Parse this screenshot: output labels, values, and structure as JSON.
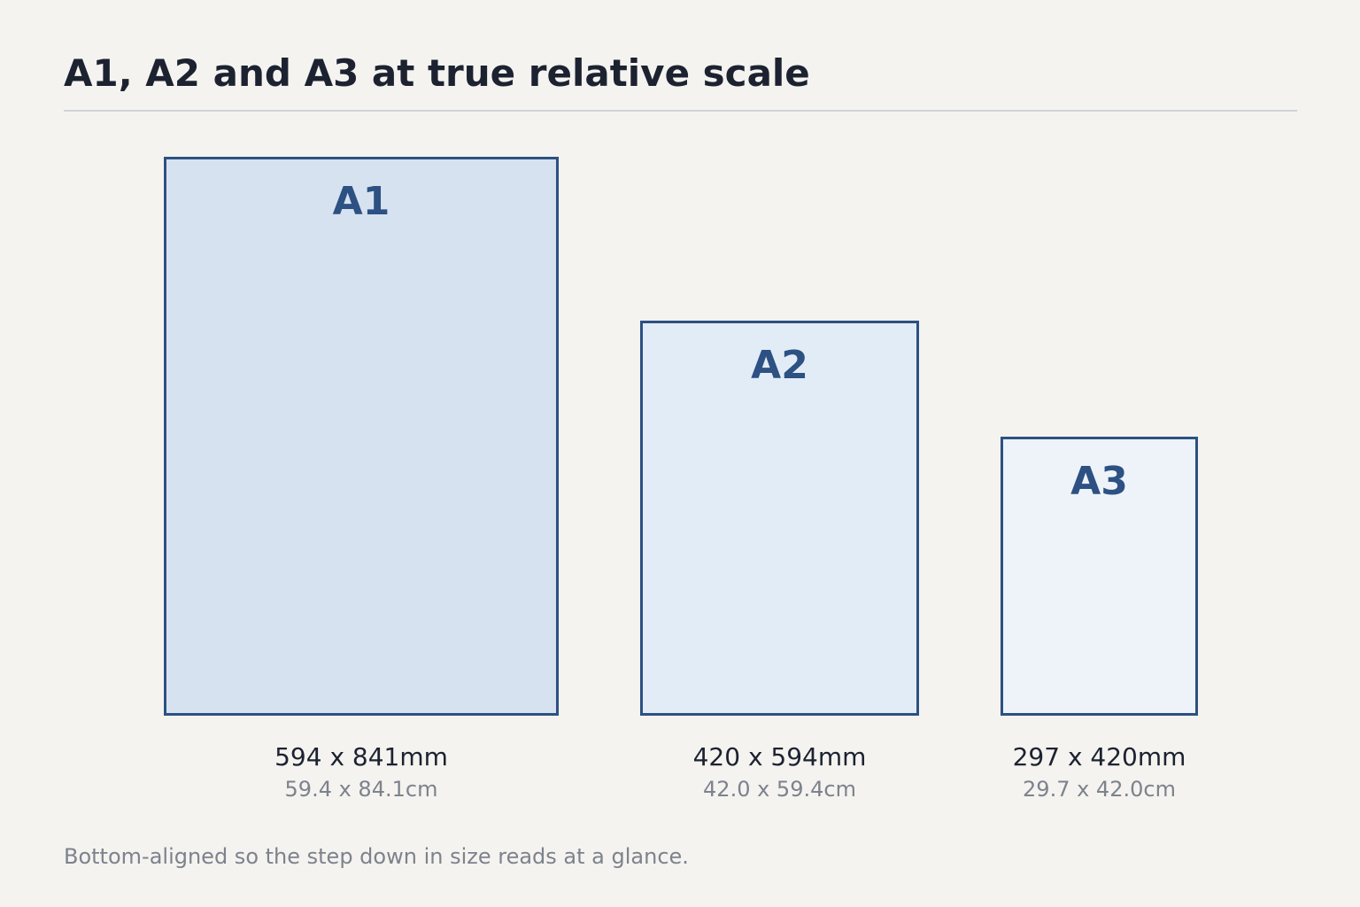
{
  "title": "A1, A2 and A3 at true relative scale",
  "footnote": "Bottom-aligned so the step down in size reads at a glance.",
  "colors": {
    "background": "#f4f3ef",
    "border": "#2c5182",
    "label": "#2c5182",
    "divider": "#cfd3d9"
  },
  "sheets": [
    {
      "name": "A1",
      "width_mm": 594,
      "height_mm": 841,
      "size_mm": "594 x 841mm",
      "size_cm": "59.4 x 84.1cm",
      "fill": "#d7e2f0"
    },
    {
      "name": "A2",
      "width_mm": 420,
      "height_mm": 594,
      "size_mm": "420 x 594mm",
      "size_cm": "42.0 x 59.4cm",
      "fill": "#e2ecf6"
    },
    {
      "name": "A3",
      "width_mm": 297,
      "height_mm": 420,
      "size_mm": "297 x 420mm",
      "size_cm": "29.7 x 42.0cm",
      "fill": "#eef3fa"
    }
  ]
}
